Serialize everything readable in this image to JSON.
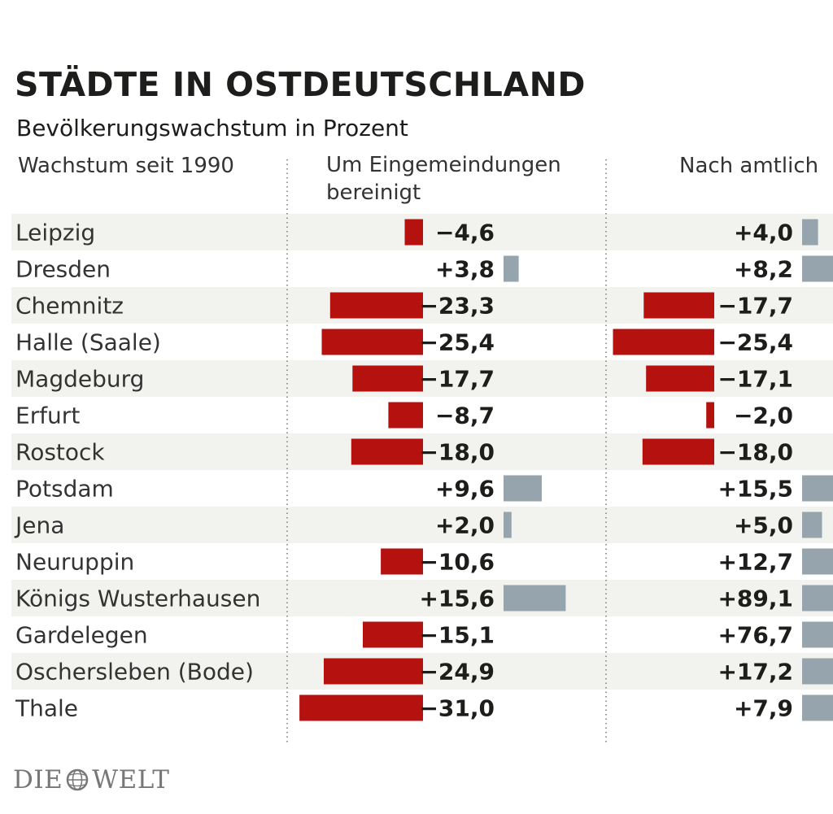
{
  "title": "STÄDTE IN OSTDEUTSCHLAND",
  "subtitle": "Bevölkerungswachstum in Prozent",
  "brand": {
    "left": "DIE",
    "right": "WELT",
    "logo_icon": "globe-icon"
  },
  "chart_data": {
    "type": "bar",
    "orientation": "horizontal",
    "xlabel": "",
    "ylabel": "",
    "columns_header": "Wachstum seit 1990",
    "colors": {
      "negative": "#b5120f",
      "positive": "#96a4ae",
      "row_stripe": "#f2f2ef"
    },
    "categories": [
      "Leipzig",
      "Dresden",
      "Chemnitz",
      "Halle (Saale)",
      "Magdeburg",
      "Erfurt",
      "Rostock",
      "Potsdam",
      "Jena",
      "Neuruppin",
      "Königs Wusterhausen",
      "Gardelegen",
      "Oschersleben (Bode)",
      "Thale"
    ],
    "series": [
      {
        "name": "Um Eingemeindungen bereinigt",
        "values": [
          -4.6,
          3.8,
          -23.3,
          -25.4,
          -17.7,
          -8.7,
          -18.0,
          9.6,
          2.0,
          -10.6,
          15.6,
          -15.1,
          -24.9,
          -31.0
        ],
        "labels": [
          "−4,6",
          "+3,8",
          "−23,3",
          "−25,4",
          "−17,7",
          "−8,7",
          "−18,0",
          "+9,6",
          "+2,0",
          "−10,6",
          "+15,6",
          "−15,1",
          "−24,9",
          "−31,0"
        ]
      },
      {
        "name": "Nach amtlich",
        "values": [
          4.0,
          8.2,
          -17.7,
          -25.4,
          -17.1,
          -2.0,
          -18.0,
          15.5,
          5.0,
          12.7,
          89.1,
          76.7,
          17.2,
          7.9
        ],
        "labels": [
          "+4,0",
          "+8,2",
          "−17,7",
          "−25,4",
          "−17,1",
          "−2,0",
          "−18,0",
          "+15,5",
          "+5,0",
          "+12,7",
          "+89,1",
          "+76,7",
          "+17,2",
          "+7,9"
        ]
      }
    ]
  }
}
